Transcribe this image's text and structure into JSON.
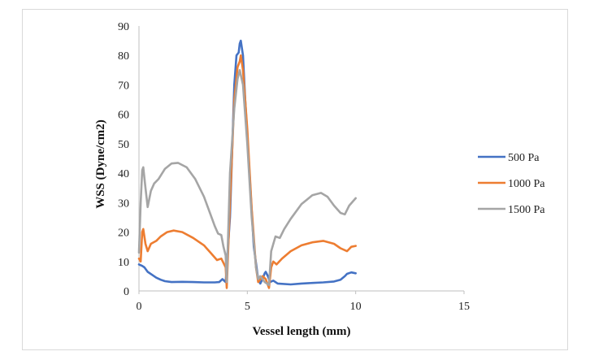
{
  "chart_data": {
    "type": "line",
    "title": "",
    "xlabel": "Vessel length (mm)",
    "ylabel": "WSS (Dyne/cm2)",
    "xlim": [
      0,
      15
    ],
    "ylim": [
      0,
      90
    ],
    "xticks": [
      "0",
      "5",
      "10",
      "15"
    ],
    "yticks": [
      "0",
      "10",
      "20",
      "30",
      "40",
      "50",
      "60",
      "70",
      "80",
      "90"
    ],
    "grid": false,
    "legend_position": "right",
    "series": [
      {
        "name": "500 Pa",
        "color": "#4472C4",
        "points": [
          [
            0,
            9
          ],
          [
            0.15,
            8.5
          ],
          [
            0.25,
            8
          ],
          [
            0.4,
            6.5
          ],
          [
            0.6,
            5.5
          ],
          [
            0.8,
            4.5
          ],
          [
            1.0,
            3.8
          ],
          [
            1.2,
            3.3
          ],
          [
            1.5,
            3
          ],
          [
            2,
            3.1
          ],
          [
            2.5,
            3
          ],
          [
            3,
            2.9
          ],
          [
            3.5,
            2.9
          ],
          [
            3.7,
            3
          ],
          [
            3.85,
            4
          ],
          [
            4.0,
            3
          ],
          [
            4.2,
            25
          ],
          [
            4.4,
            70
          ],
          [
            4.5,
            80
          ],
          [
            4.6,
            81
          ],
          [
            4.65,
            84
          ],
          [
            4.7,
            85
          ],
          [
            4.8,
            80
          ],
          [
            4.9,
            65
          ],
          [
            5.1,
            40
          ],
          [
            5.3,
            15
          ],
          [
            5.5,
            4
          ],
          [
            5.6,
            2.5
          ],
          [
            5.7,
            4
          ],
          [
            5.8,
            6
          ],
          [
            5.85,
            6.5
          ],
          [
            5.95,
            5
          ],
          [
            6.05,
            3
          ],
          [
            6.2,
            3.5
          ],
          [
            6.4,
            2.5
          ],
          [
            7,
            2.2
          ],
          [
            7.5,
            2.5
          ],
          [
            8,
            2.7
          ],
          [
            8.5,
            2.9
          ],
          [
            9,
            3.2
          ],
          [
            9.3,
            3.8
          ],
          [
            9.5,
            5
          ],
          [
            9.6,
            5.8
          ],
          [
            9.8,
            6.3
          ],
          [
            10,
            6
          ]
        ]
      },
      {
        "name": "1000 Pa",
        "color": "#ED7D31",
        "points": [
          [
            0,
            11
          ],
          [
            0.08,
            10
          ],
          [
            0.15,
            20
          ],
          [
            0.2,
            21
          ],
          [
            0.3,
            16
          ],
          [
            0.4,
            13.5
          ],
          [
            0.55,
            16
          ],
          [
            0.8,
            17
          ],
          [
            1.0,
            18.5
          ],
          [
            1.3,
            20
          ],
          [
            1.6,
            20.5
          ],
          [
            2,
            20
          ],
          [
            2.5,
            18
          ],
          [
            3,
            15.5
          ],
          [
            3.3,
            13
          ],
          [
            3.6,
            10.5
          ],
          [
            3.8,
            11
          ],
          [
            4.0,
            8
          ],
          [
            4.05,
            1
          ],
          [
            4.2,
            30
          ],
          [
            4.4,
            65
          ],
          [
            4.55,
            76
          ],
          [
            4.65,
            78
          ],
          [
            4.7,
            80
          ],
          [
            4.8,
            75
          ],
          [
            5.0,
            55
          ],
          [
            5.2,
            28
          ],
          [
            5.4,
            8
          ],
          [
            5.5,
            3
          ],
          [
            5.6,
            4
          ],
          [
            5.7,
            5
          ],
          [
            5.85,
            4
          ],
          [
            6.0,
            1
          ],
          [
            6.1,
            8
          ],
          [
            6.2,
            10
          ],
          [
            6.35,
            9
          ],
          [
            6.6,
            11
          ],
          [
            7,
            13.5
          ],
          [
            7.5,
            15.5
          ],
          [
            8,
            16.5
          ],
          [
            8.5,
            17
          ],
          [
            9,
            16
          ],
          [
            9.3,
            14.5
          ],
          [
            9.6,
            13.5
          ],
          [
            9.8,
            15
          ],
          [
            10,
            15.3
          ]
        ]
      },
      {
        "name": "1500 Pa",
        "color": "#A5A5A5",
        "points": [
          [
            0,
            13
          ],
          [
            0.08,
            30
          ],
          [
            0.15,
            41
          ],
          [
            0.2,
            42
          ],
          [
            0.3,
            35
          ],
          [
            0.4,
            28.5
          ],
          [
            0.55,
            34
          ],
          [
            0.7,
            36.5
          ],
          [
            0.9,
            38
          ],
          [
            1.2,
            41.5
          ],
          [
            1.5,
            43.3
          ],
          [
            1.8,
            43.5
          ],
          [
            2.2,
            42
          ],
          [
            2.6,
            38
          ],
          [
            3,
            32
          ],
          [
            3.3,
            26
          ],
          [
            3.5,
            22
          ],
          [
            3.65,
            19.5
          ],
          [
            3.8,
            19
          ],
          [
            3.9,
            15
          ],
          [
            4.0,
            12
          ],
          [
            4.05,
            3
          ],
          [
            4.2,
            40
          ],
          [
            4.4,
            62
          ],
          [
            4.55,
            72
          ],
          [
            4.65,
            75
          ],
          [
            4.8,
            70
          ],
          [
            5.0,
            50
          ],
          [
            5.2,
            25
          ],
          [
            5.4,
            8
          ],
          [
            5.5,
            4
          ],
          [
            5.6,
            5
          ],
          [
            5.8,
            3
          ],
          [
            6.0,
            2
          ],
          [
            6.1,
            13.5
          ],
          [
            6.3,
            18.5
          ],
          [
            6.5,
            18
          ],
          [
            6.7,
            21
          ],
          [
            7,
            24.5
          ],
          [
            7.5,
            29.5
          ],
          [
            8,
            32.5
          ],
          [
            8.4,
            33.3
          ],
          [
            8.7,
            32
          ],
          [
            9.0,
            29
          ],
          [
            9.3,
            26.5
          ],
          [
            9.5,
            26
          ],
          [
            9.7,
            29
          ],
          [
            10,
            31.5
          ]
        ]
      }
    ]
  }
}
